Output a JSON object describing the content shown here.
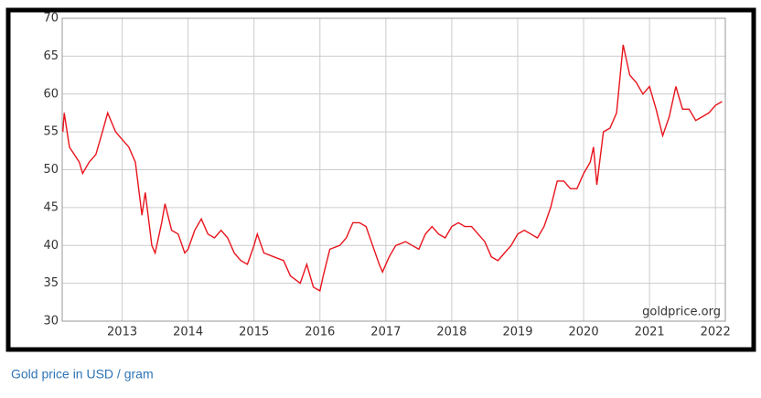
{
  "chart_data": {
    "type": "line",
    "watermark": "goldprice.org",
    "caption": "Gold price in USD / gram",
    "xlim": [
      2012.09,
      2022.15
    ],
    "xticks": [
      2013,
      2014,
      2015,
      2016,
      2017,
      2018,
      2019,
      2020,
      2021,
      2022
    ],
    "ylim": [
      30,
      70
    ],
    "yticks": [
      30,
      35,
      40,
      45,
      50,
      55,
      60,
      65,
      70
    ],
    "grid": true,
    "series": [
      {
        "color": "#e8141c",
        "x": [
          2012.1,
          2012.12,
          2012.2,
          2012.35,
          2012.4,
          2012.5,
          2012.6,
          2012.7,
          2012.78,
          2012.9,
          2013.0,
          2013.1,
          2013.2,
          2013.3,
          2013.35,
          2013.45,
          2013.5,
          2013.6,
          2013.65,
          2013.75,
          2013.85,
          2013.95,
          2014.0,
          2014.1,
          2014.2,
          2014.3,
          2014.4,
          2014.5,
          2014.6,
          2014.7,
          2014.8,
          2014.9,
          2015.0,
          2015.05,
          2015.15,
          2015.3,
          2015.45,
          2015.55,
          2015.7,
          2015.8,
          2015.9,
          2016.0,
          2016.05,
          2016.15,
          2016.3,
          2016.4,
          2016.5,
          2016.6,
          2016.7,
          2016.8,
          2016.9,
          2016.95,
          2017.05,
          2017.15,
          2017.3,
          2017.4,
          2017.5,
          2017.6,
          2017.7,
          2017.8,
          2017.9,
          2018.0,
          2018.1,
          2018.2,
          2018.3,
          2018.4,
          2018.5,
          2018.6,
          2018.7,
          2018.8,
          2018.9,
          2019.0,
          2019.1,
          2019.2,
          2019.3,
          2019.4,
          2019.5,
          2019.6,
          2019.7,
          2019.8,
          2019.9,
          2020.0,
          2020.1,
          2020.15,
          2020.2,
          2020.3,
          2020.4,
          2020.5,
          2020.55,
          2020.6,
          2020.7,
          2020.8,
          2020.9,
          2021.0,
          2021.1,
          2021.2,
          2021.3,
          2021.4,
          2021.5,
          2021.6,
          2021.7,
          2021.8,
          2021.9,
          2022.0,
          2022.1
        ],
        "values": [
          55,
          57.5,
          53,
          51,
          49.5,
          51,
          52,
          55,
          57.5,
          55,
          54,
          53,
          51,
          44,
          47,
          40,
          39,
          43,
          45.5,
          42,
          41.5,
          39,
          39.5,
          42,
          43.5,
          41.5,
          41,
          42,
          41,
          39,
          38,
          37.5,
          40,
          41.5,
          39,
          38.5,
          38,
          36,
          35,
          37.5,
          34.5,
          34,
          36,
          39.5,
          40,
          41,
          43,
          43,
          42.5,
          40,
          37.5,
          36.5,
          38.5,
          40,
          40.5,
          40,
          39.5,
          41.5,
          42.5,
          41.5,
          41,
          42.5,
          43,
          42.5,
          42.5,
          41.5,
          40.5,
          38.5,
          38,
          39,
          40,
          41.5,
          42,
          41.5,
          41,
          42.5,
          45,
          48.5,
          48.5,
          47.5,
          47.5,
          49.5,
          51,
          53,
          48,
          55,
          55.5,
          57.5,
          62,
          66.5,
          62.5,
          61.5,
          60,
          61,
          58,
          54.5,
          57,
          61,
          58,
          58,
          56.5,
          57,
          57.5,
          58.5,
          59
        ]
      }
    ]
  }
}
